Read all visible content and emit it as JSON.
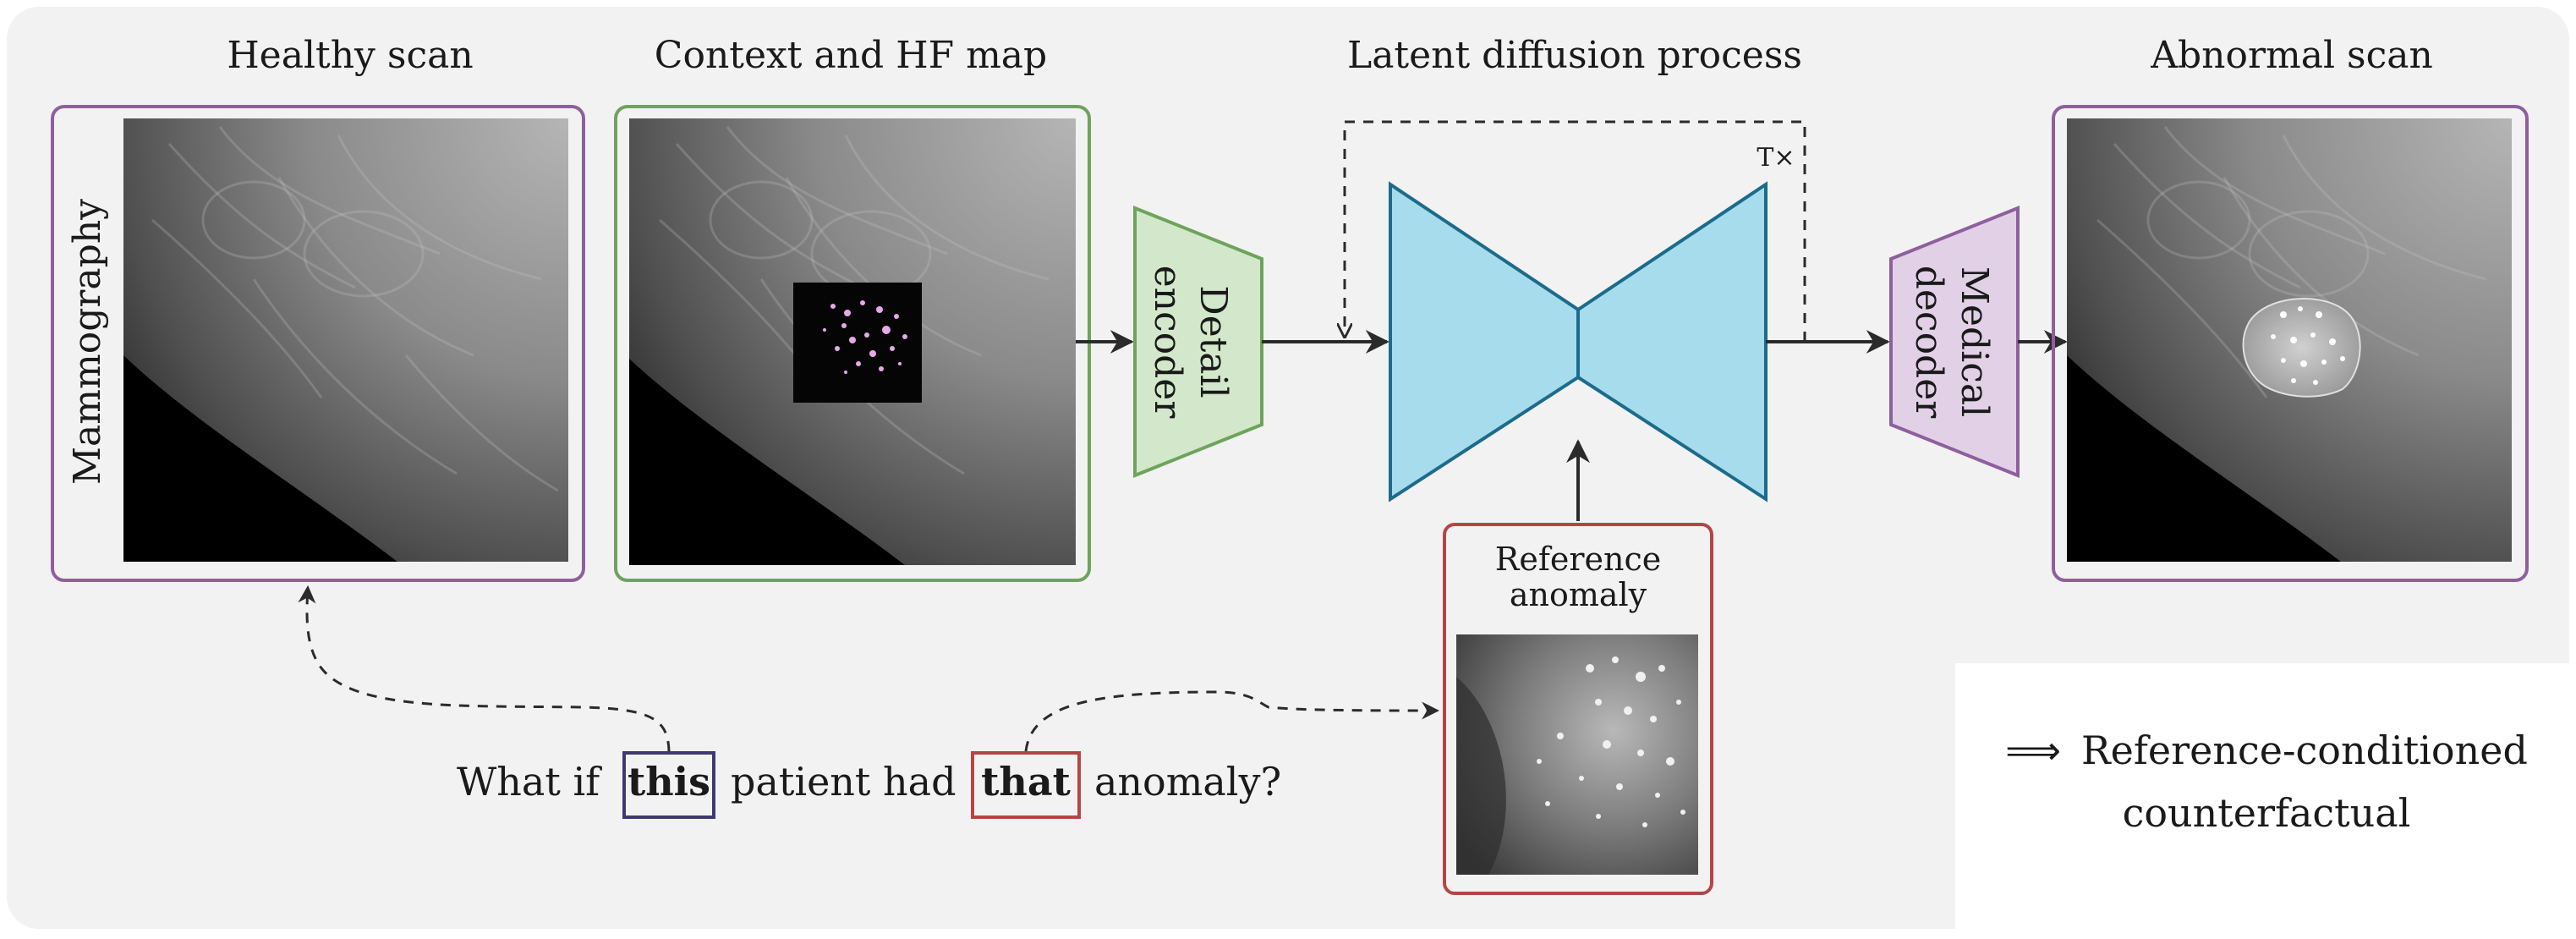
{
  "titles": {
    "healthy": "Healthy scan",
    "context": "Context and HF map",
    "diffusion": "Latent diffusion process",
    "abnormal": "Abnormal scan"
  },
  "modality_label": "Mammography",
  "blocks": {
    "detail_encoder": [
      "Detail",
      "encoder"
    ],
    "medical_decoder": [
      "Medical",
      "decoder"
    ],
    "repeat": "T×"
  },
  "reference": {
    "label_lines": [
      "Reference",
      "anomaly"
    ]
  },
  "question": {
    "part1": "What if",
    "this": "this",
    "part2": "patient had",
    "that": "that",
    "part3": "anomaly?"
  },
  "result": {
    "arrow": "⟹",
    "line1": "Reference-conditioned",
    "line2": "counterfactual"
  },
  "colors": {
    "background_panel": "#f2f2f2",
    "healthy_frame": "#8e5f9e",
    "context_frame": "#6ea35c",
    "encoder_fill": "#d3e8cb",
    "encoder_stroke": "#6ea35c",
    "unet_fill": "#a7dcec",
    "unet_stroke": "#1c6b8c",
    "decoder_fill": "#e1d0e6",
    "decoder_stroke": "#8e5f9e",
    "reference_frame": "#b54545",
    "this_box": "#3d3a72",
    "that_box": "#b54545",
    "hf_dots": "#e6a9e8"
  }
}
